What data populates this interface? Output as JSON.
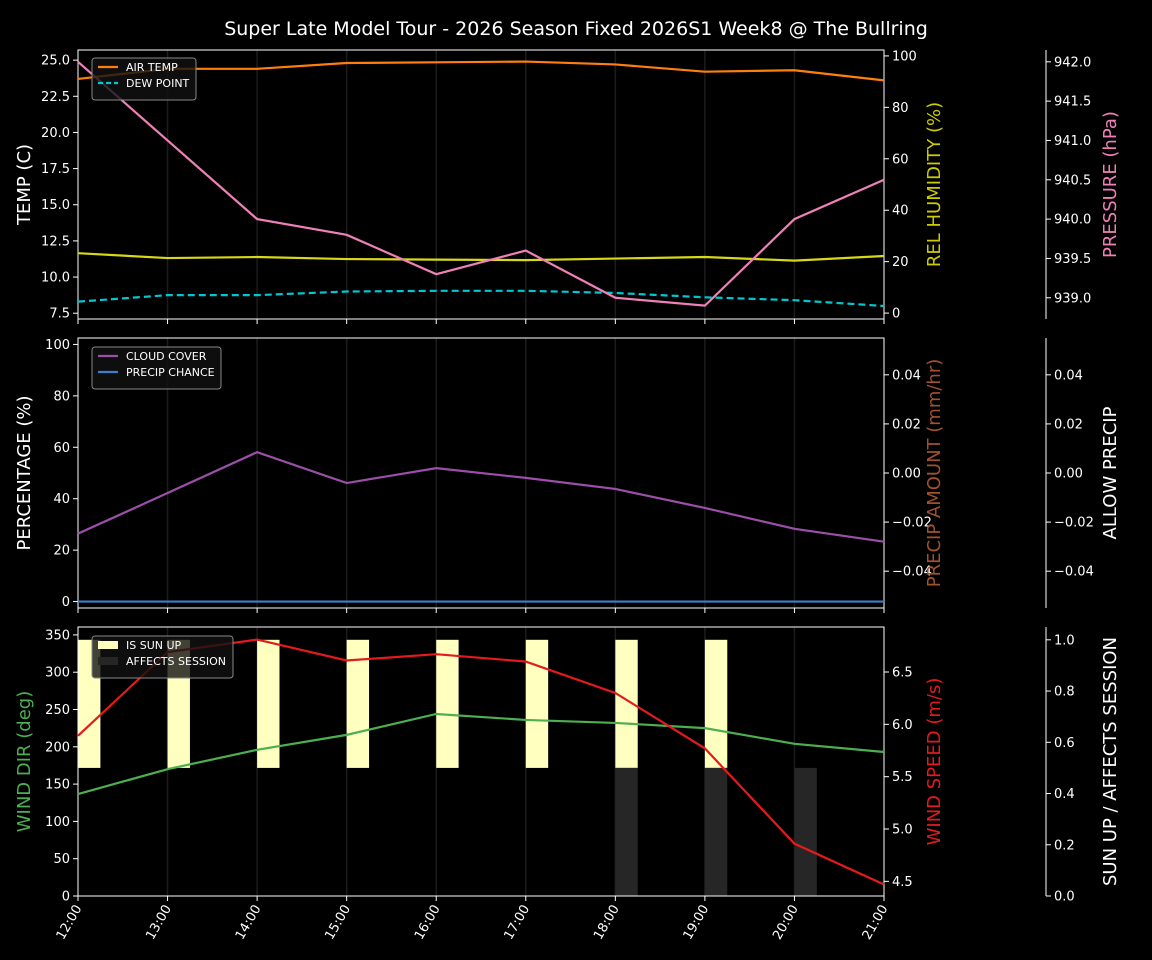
{
  "title": "Super Late Model Tour - 2026 Season Fixed 2026S1 Week8 @ The Bullring",
  "chart_data": [
    {
      "type": "line",
      "x": [
        "12:00",
        "13:00",
        "14:00",
        "15:00",
        "16:00",
        "17:00",
        "18:00",
        "19:00",
        "20:00",
        "21:00"
      ],
      "grid": "vertical",
      "legend": "top-left",
      "axes": {
        "left": {
          "label": "TEMP (C)",
          "color": "#ffffff",
          "ylim": [
            7.1,
            25.7
          ],
          "ticks": [
            7.5,
            10.0,
            12.5,
            15.0,
            17.5,
            20.0,
            22.5,
            25.0
          ],
          "tick_labels": [
            "7.5",
            "10.0",
            "12.5",
            "15.0",
            "17.5",
            "20.0",
            "22.5",
            "25.0"
          ]
        },
        "right": {
          "label": "REL HUMIDITY (%)",
          "color": "#cccc00",
          "ylim": [
            -2.3,
            102.3
          ],
          "ticks": [
            0,
            20,
            40,
            60,
            80,
            100
          ],
          "tick_labels": [
            "0",
            "20",
            "40",
            "60",
            "80",
            "100"
          ]
        },
        "right2": {
          "label": "PRESSURE (hPa)",
          "color": "#f080b8",
          "ylim": [
            938.73,
            942.15
          ],
          "ticks": [
            939.0,
            939.5,
            940.0,
            940.5,
            941.0,
            941.5,
            942.0
          ],
          "tick_labels": [
            "939.0",
            "939.5",
            "940.0",
            "940.5",
            "941.0",
            "941.5",
            "942.0"
          ]
        }
      },
      "series": [
        {
          "name": "AIR TEMP",
          "axis": "left",
          "color": "#ff7f0e",
          "style": "solid",
          "values": [
            23.7,
            24.4,
            24.4,
            24.8,
            24.85,
            24.9,
            24.7,
            24.2,
            24.3,
            23.6
          ]
        },
        {
          "name": "DEW POINT",
          "axis": "left",
          "color": "#00c8d0",
          "style": "dashed",
          "values": [
            8.3,
            8.75,
            8.75,
            9.0,
            9.05,
            9.05,
            8.9,
            8.6,
            8.4,
            8.0
          ]
        },
        {
          "axis": "right",
          "color": "#d8d818",
          "style": "solid",
          "values": [
            23.3,
            21.4,
            21.8,
            21.0,
            20.8,
            20.6,
            21.2,
            21.8,
            20.4,
            22.2
          ]
        },
        {
          "axis": "right2",
          "color": "#f080b8",
          "style": "solid",
          "values": [
            942.0,
            941.0,
            940.0,
            939.8,
            939.3,
            939.6,
            939.0,
            938.9,
            940.0,
            940.5
          ]
        }
      ]
    },
    {
      "type": "line",
      "x": [
        "12:00",
        "13:00",
        "14:00",
        "15:00",
        "16:00",
        "17:00",
        "18:00",
        "19:00",
        "20:00",
        "21:00"
      ],
      "grid": "vertical",
      "legend": "top-left",
      "axes": {
        "left": {
          "label": "PERCENTAGE (%)",
          "color": "#ffffff",
          "ylim": [
            -2.5,
            102.5
          ],
          "ticks": [
            0,
            20,
            40,
            60,
            80,
            100
          ],
          "tick_labels": [
            "0",
            "20",
            "40",
            "60",
            "80",
            "100"
          ]
        },
        "right": {
          "label": "PRECIP AMOUNT (mm/hr)",
          "color": "#a0522d",
          "ylim": [
            -0.055,
            0.055
          ],
          "ticks": [
            -0.04,
            -0.02,
            0,
            0.02,
            0.04
          ],
          "tick_labels": [
            "−0.04",
            "−0.02",
            "0.00",
            "0.02",
            "0.04"
          ]
        },
        "right2": {
          "label": "ALLOW PRECIP",
          "color": "#ffffff",
          "ylim": [
            -0.055,
            0.055
          ],
          "ticks": [
            -0.04,
            -0.02,
            0,
            0.02,
            0.04
          ],
          "tick_labels": [
            "−0.04",
            "−0.02",
            "0.00",
            "0.02",
            "0.04"
          ]
        }
      },
      "series": [
        {
          "name": "CLOUD COVER",
          "axis": "left",
          "color": "#9b4fa8",
          "style": "solid",
          "values": [
            26.4,
            42.2,
            58.1,
            46.1,
            51.9,
            48.1,
            43.8,
            36.4,
            28.3,
            23.3
          ]
        },
        {
          "name": "PRECIP CHANCE",
          "axis": "left",
          "color": "#3a80c8",
          "style": "solid",
          "values": [
            0,
            0,
            0,
            0,
            0,
            0,
            0,
            0,
            0,
            0
          ]
        }
      ]
    },
    {
      "type": "line",
      "x": [
        "12:00",
        "13:00",
        "14:00",
        "15:00",
        "16:00",
        "17:00",
        "18:00",
        "19:00",
        "20:00",
        "21:00"
      ],
      "grid": "vertical",
      "legend": "top-left",
      "axes": {
        "left": {
          "label": "WIND DIR (deg)",
          "color": "#4caf50",
          "ylim": [
            0,
            360.6
          ],
          "ticks": [
            0,
            50,
            100,
            150,
            200,
            250,
            300,
            350
          ],
          "tick_labels": [
            "0",
            "50",
            "100",
            "150",
            "200",
            "250",
            "300",
            "350"
          ]
        },
        "right": {
          "label": "WIND SPEED (m/s)",
          "color": "#e41a1c",
          "ylim": [
            4.36,
            6.93
          ],
          "ticks": [
            4.5,
            5.0,
            5.5,
            6.0,
            6.5
          ],
          "tick_labels": [
            "4.5",
            "5.0",
            "5.5",
            "6.0",
            "6.5"
          ]
        },
        "right2": {
          "label": "SUN UP / AFFECTS SESSION",
          "color": "#ffffff",
          "ylim": [
            0,
            1.05
          ],
          "ticks": [
            0,
            0.2,
            0.4,
            0.6,
            0.8,
            1.0
          ],
          "tick_labels": [
            "0.0",
            "0.2",
            "0.4",
            "0.6",
            "0.8",
            "1.0"
          ]
        }
      },
      "bars": [
        {
          "name": "IS SUN UP",
          "color": "#ffffc0",
          "values": [
            1,
            1,
            1,
            1,
            1,
            1,
            1,
            1,
            0,
            0
          ]
        },
        {
          "name": "AFFECTS SESSION",
          "color": "#262626",
          "values": [
            0,
            0,
            0,
            0,
            0,
            0,
            1,
            1,
            1,
            0
          ]
        }
      ],
      "series": [
        {
          "axis": "left",
          "color": "#4caf50",
          "style": "solid",
          "values": [
            136.7,
            170,
            196,
            216,
            244,
            236,
            232,
            225,
            204,
            193
          ]
        },
        {
          "axis": "right",
          "color": "#e41a1c",
          "style": "solid",
          "values": [
            5.89,
            6.69,
            6.81,
            6.61,
            6.67,
            6.6,
            6.3,
            5.77,
            4.86,
            4.47
          ]
        }
      ]
    }
  ]
}
